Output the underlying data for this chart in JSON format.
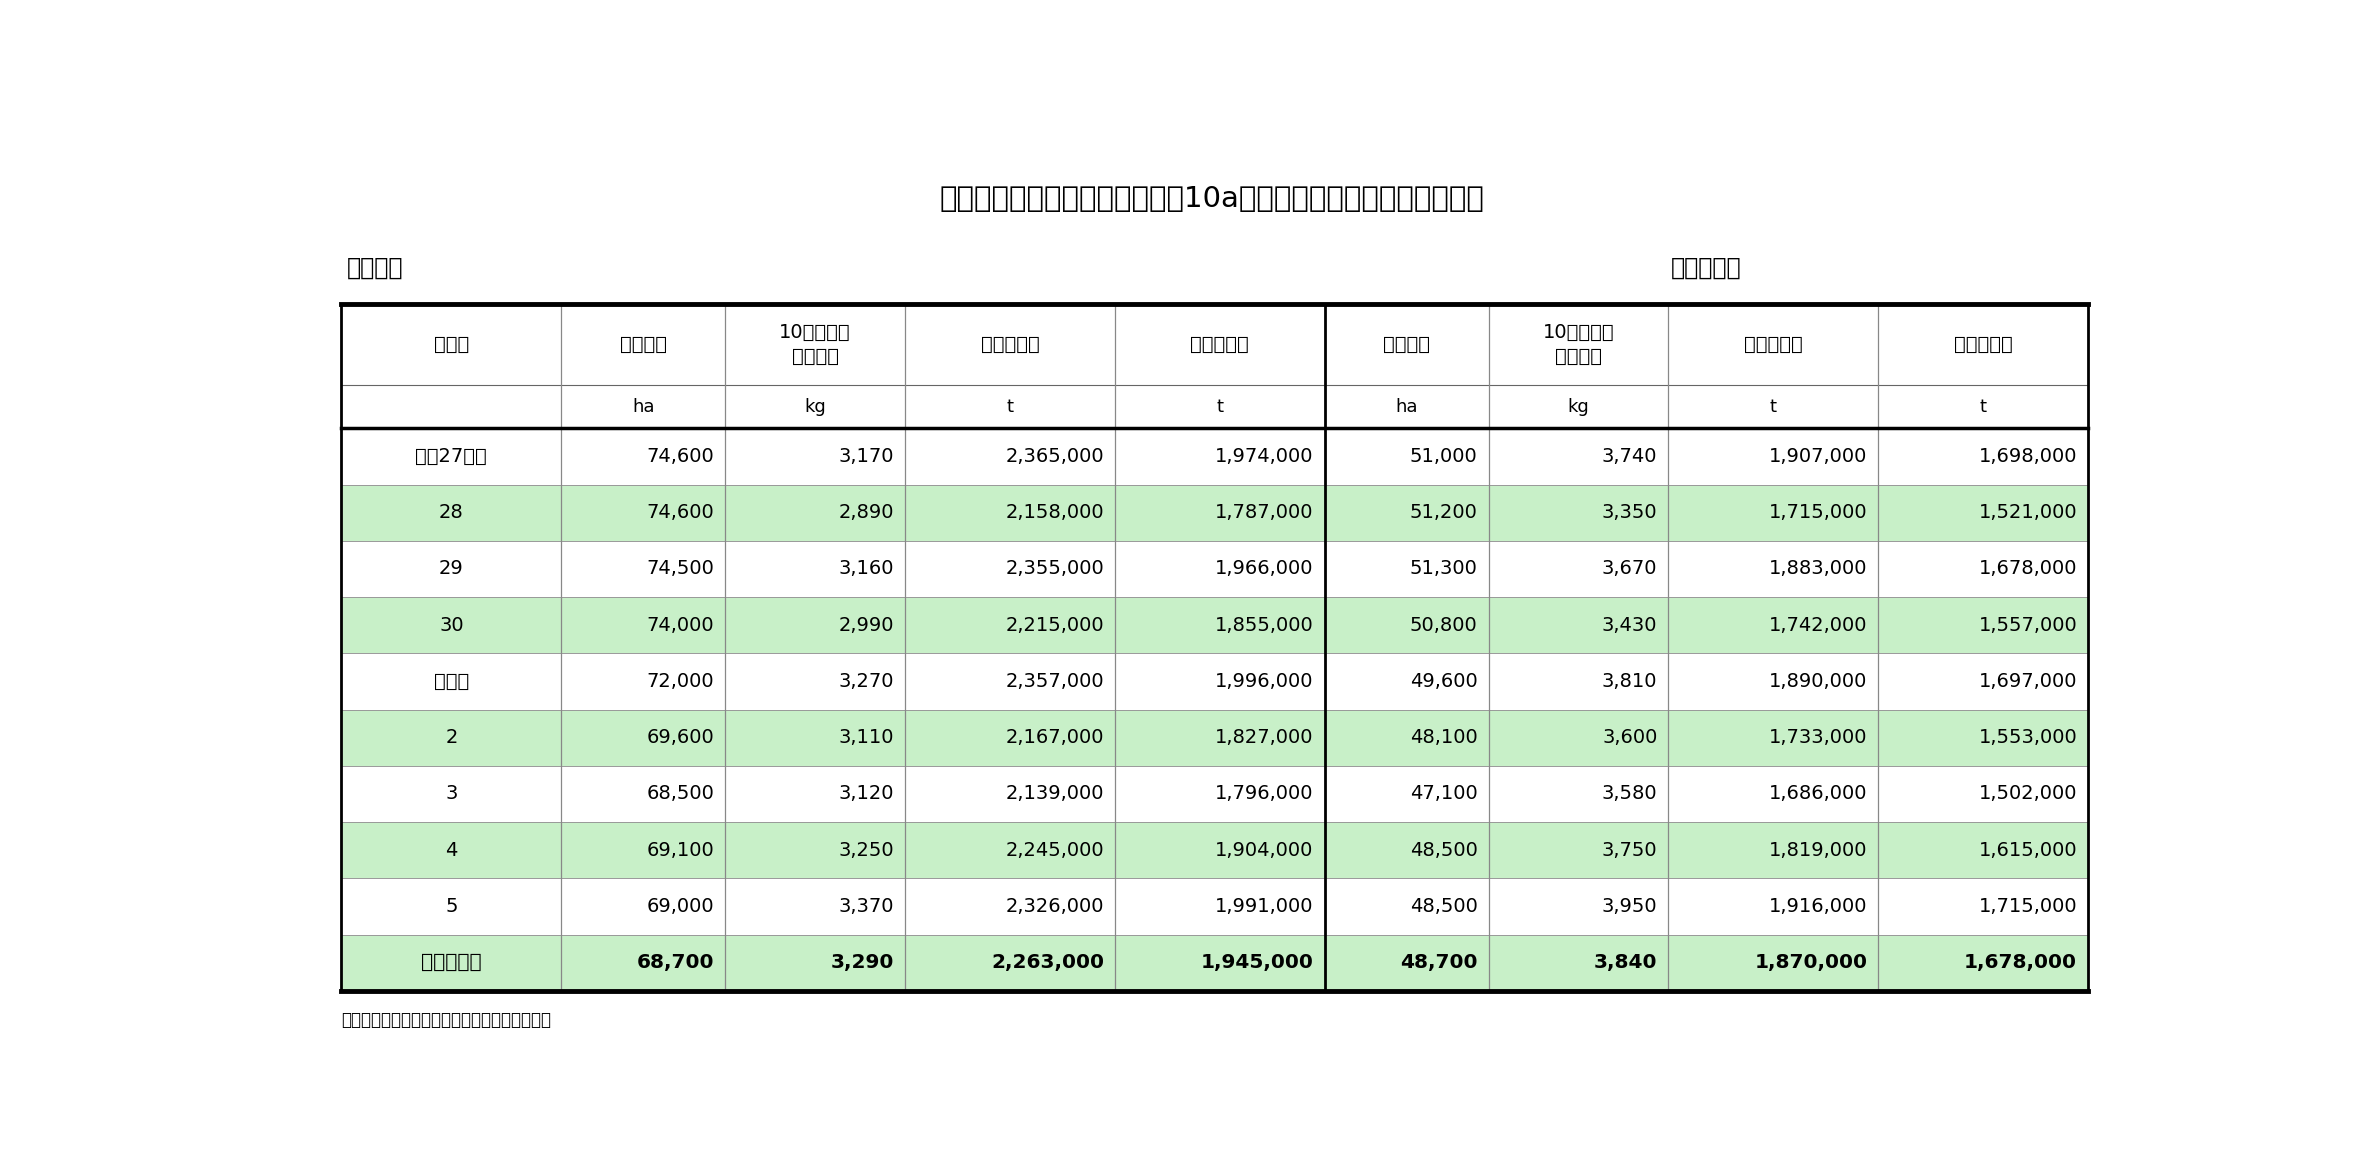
{
  "title": "春植えばれいしょの作付面積、10a当たり収量、収穫量及び出荷量",
  "section1": "１　全国",
  "section2": "２　北海道",
  "rows": [
    {
      "label": "平成27年産",
      "data": [
        "74,600",
        "3,170",
        "2,365,000",
        "1,974,000",
        "51,000",
        "3,740",
        "1,907,000",
        "1,698,000"
      ],
      "highlight": false,
      "bold": false
    },
    {
      "label": "28",
      "data": [
        "74,600",
        "2,890",
        "2,158,000",
        "1,787,000",
        "51,200",
        "3,350",
        "1,715,000",
        "1,521,000"
      ],
      "highlight": true,
      "bold": false
    },
    {
      "label": "29",
      "data": [
        "74,500",
        "3,160",
        "2,355,000",
        "1,966,000",
        "51,300",
        "3,670",
        "1,883,000",
        "1,678,000"
      ],
      "highlight": false,
      "bold": false
    },
    {
      "label": "30",
      "data": [
        "74,000",
        "2,990",
        "2,215,000",
        "1,855,000",
        "50,800",
        "3,430",
        "1,742,000",
        "1,557,000"
      ],
      "highlight": true,
      "bold": false
    },
    {
      "label": "令和元",
      "data": [
        "72,000",
        "3,270",
        "2,357,000",
        "1,996,000",
        "49,600",
        "3,810",
        "1,890,000",
        "1,697,000"
      ],
      "highlight": false,
      "bold": false
    },
    {
      "label": "2",
      "data": [
        "69,600",
        "3,110",
        "2,167,000",
        "1,827,000",
        "48,100",
        "3,600",
        "1,733,000",
        "1,553,000"
      ],
      "highlight": true,
      "bold": false
    },
    {
      "label": "3",
      "data": [
        "68,500",
        "3,120",
        "2,139,000",
        "1,796,000",
        "47,100",
        "3,580",
        "1,686,000",
        "1,502,000"
      ],
      "highlight": false,
      "bold": false
    },
    {
      "label": "4",
      "data": [
        "69,100",
        "3,250",
        "2,245,000",
        "1,904,000",
        "48,500",
        "3,750",
        "1,819,000",
        "1,615,000"
      ],
      "highlight": true,
      "bold": false
    },
    {
      "label": "5",
      "data": [
        "69,000",
        "3,370",
        "2,326,000",
        "1,991,000",
        "48,500",
        "3,950",
        "1,916,000",
        "1,715,000"
      ],
      "highlight": false,
      "bold": false
    },
    {
      "label": "６（概数）",
      "data": [
        "68,700",
        "3,290",
        "2,263,000",
        "1,945,000",
        "48,700",
        "3,840",
        "1,870,000",
        "1,678,000"
      ],
      "highlight": true,
      "bold": true
    }
  ],
  "header_col0": "年　産",
  "header_cols": [
    "作付面積",
    "10ａ当たり\n収　　量",
    "収　穫　量",
    "出　荷　量",
    "作付面積",
    "10ａ当たり\n収　　量",
    "収　穫　量",
    "出　荷　量"
  ],
  "units_cols": [
    "ha",
    "kg",
    "t",
    "t",
    "ha",
    "kg",
    "t",
    "t"
  ],
  "footer": "資料：農林水産省統計部「野菜生産出荷統計」",
  "highlight_color": "#c8f0c8",
  "bg_color": "#ffffff"
}
